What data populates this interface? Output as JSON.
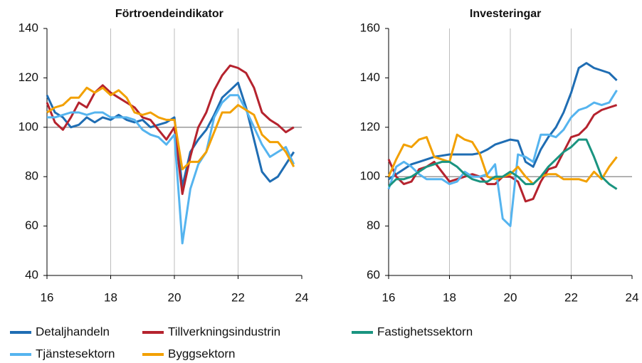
{
  "chart_data": [
    {
      "type": "line",
      "title": "Förtroendeindikator",
      "x": [
        16,
        16.25,
        16.5,
        16.75,
        17,
        17.25,
        17.5,
        17.75,
        18,
        18.25,
        18.5,
        18.75,
        19,
        19.25,
        19.5,
        19.75,
        20,
        20.25,
        20.5,
        20.75,
        21,
        21.25,
        21.5,
        21.75,
        22,
        22.25,
        22.5,
        22.75,
        23,
        23.25,
        23.5,
        23.75
      ],
      "xlim": [
        16,
        24
      ],
      "xticks": [
        16,
        18,
        20,
        22,
        24
      ],
      "ylim": [
        40,
        140
      ],
      "yticks": [
        40,
        60,
        80,
        100,
        120,
        140
      ],
      "reference_line": 100,
      "grid": true,
      "series": [
        {
          "name": "Detaljhandeln",
          "color": "#1f6db3",
          "values": [
            113,
            106,
            104,
            100,
            101,
            104,
            102,
            104,
            103,
            105,
            103,
            102,
            103,
            100,
            101,
            102,
            104,
            76,
            90,
            95,
            99,
            105,
            112,
            115,
            118,
            108,
            95,
            82,
            78,
            80,
            85,
            90
          ]
        },
        {
          "name": "Tillverkningsindustrin",
          "color": "#b5232e",
          "values": [
            110,
            102,
            99,
            104,
            110,
            108,
            114,
            117,
            114,
            112,
            110,
            108,
            104,
            103,
            99,
            95,
            100,
            73,
            88,
            100,
            106,
            115,
            121,
            125,
            124,
            122,
            116,
            106,
            103,
            101,
            98,
            100
          ]
        },
        {
          "name": "Tjänstesektorn",
          "color": "#55b4ef",
          "values": [
            104,
            104,
            105,
            106,
            106,
            105,
            106,
            106,
            104,
            104,
            104,
            103,
            99,
            97,
            96,
            93,
            97,
            53,
            75,
            85,
            90,
            104,
            110,
            113,
            113,
            107,
            100,
            93,
            88,
            90,
            92,
            85
          ]
        },
        {
          "name": "Byggsektorn",
          "color": "#f2a000",
          "values": [
            106,
            108,
            109,
            112,
            112,
            116,
            114,
            116,
            113,
            115,
            112,
            106,
            105,
            106,
            104,
            103,
            103,
            83,
            86,
            86,
            90,
            98,
            106,
            106,
            109,
            107,
            105,
            97,
            94,
            94,
            90,
            84
          ]
        }
      ]
    },
    {
      "type": "line",
      "title": "Investeringar",
      "x": [
        16,
        16.25,
        16.5,
        16.75,
        17,
        17.25,
        17.5,
        17.75,
        18,
        18.25,
        18.5,
        18.75,
        19,
        19.25,
        19.5,
        19.75,
        20,
        20.25,
        20.5,
        20.75,
        21,
        21.25,
        21.5,
        21.75,
        22,
        22.25,
        22.5,
        22.75,
        23,
        23.25,
        23.5
      ],
      "xlim": [
        16,
        24
      ],
      "xticks": [
        16,
        18,
        20,
        22,
        24
      ],
      "ylim": [
        60,
        160
      ],
      "yticks": [
        60,
        80,
        100,
        120,
        140,
        160
      ],
      "reference_line": 100,
      "grid": true,
      "series": [
        {
          "color": "#1f6db3",
          "values": [
            99,
            101,
            103,
            105,
            106,
            107,
            108,
            108.5,
            109,
            109,
            109,
            109,
            109.5,
            111,
            113,
            114,
            115,
            114.5,
            106,
            104,
            111,
            116,
            120,
            126,
            134,
            144,
            146,
            144,
            143,
            142,
            139
          ]
        },
        {
          "color": "#b5232e",
          "values": [
            107,
            100,
            97,
            98,
            103,
            104,
            106,
            102,
            98,
            99,
            100,
            101,
            100,
            97,
            97,
            100,
            100,
            98,
            90,
            91,
            98,
            103,
            104,
            110,
            116,
            117,
            120,
            125,
            127,
            128,
            129
          ]
        },
        {
          "color": "#55b4ef",
          "values": [
            95,
            104,
            106,
            104,
            101,
            99,
            99,
            99,
            97,
            98,
            102,
            100,
            100,
            101,
            105,
            83,
            80,
            109,
            108,
            106,
            117,
            117,
            116,
            119,
            124,
            127,
            128,
            130,
            129,
            130,
            135
          ]
        },
        {
          "color": "#f2a000",
          "values": [
            100,
            107,
            113,
            112,
            115,
            116,
            108,
            107,
            106,
            117,
            115,
            114,
            109,
            100,
            99,
            100,
            101,
            104,
            100,
            97,
            100,
            101,
            101,
            99,
            99,
            99,
            98,
            102,
            99,
            104,
            108
          ]
        },
        {
          "name": "Fastighetssektorn",
          "color": "#1a9480",
          "values": [
            96,
            99,
            99,
            100,
            102,
            104,
            105,
            106,
            106,
            104,
            101,
            99,
            98,
            98,
            100,
            100,
            102,
            100,
            97,
            97,
            100,
            104,
            107,
            110,
            112,
            115,
            115,
            108,
            100,
            97,
            95
          ]
        }
      ]
    }
  ]
}
